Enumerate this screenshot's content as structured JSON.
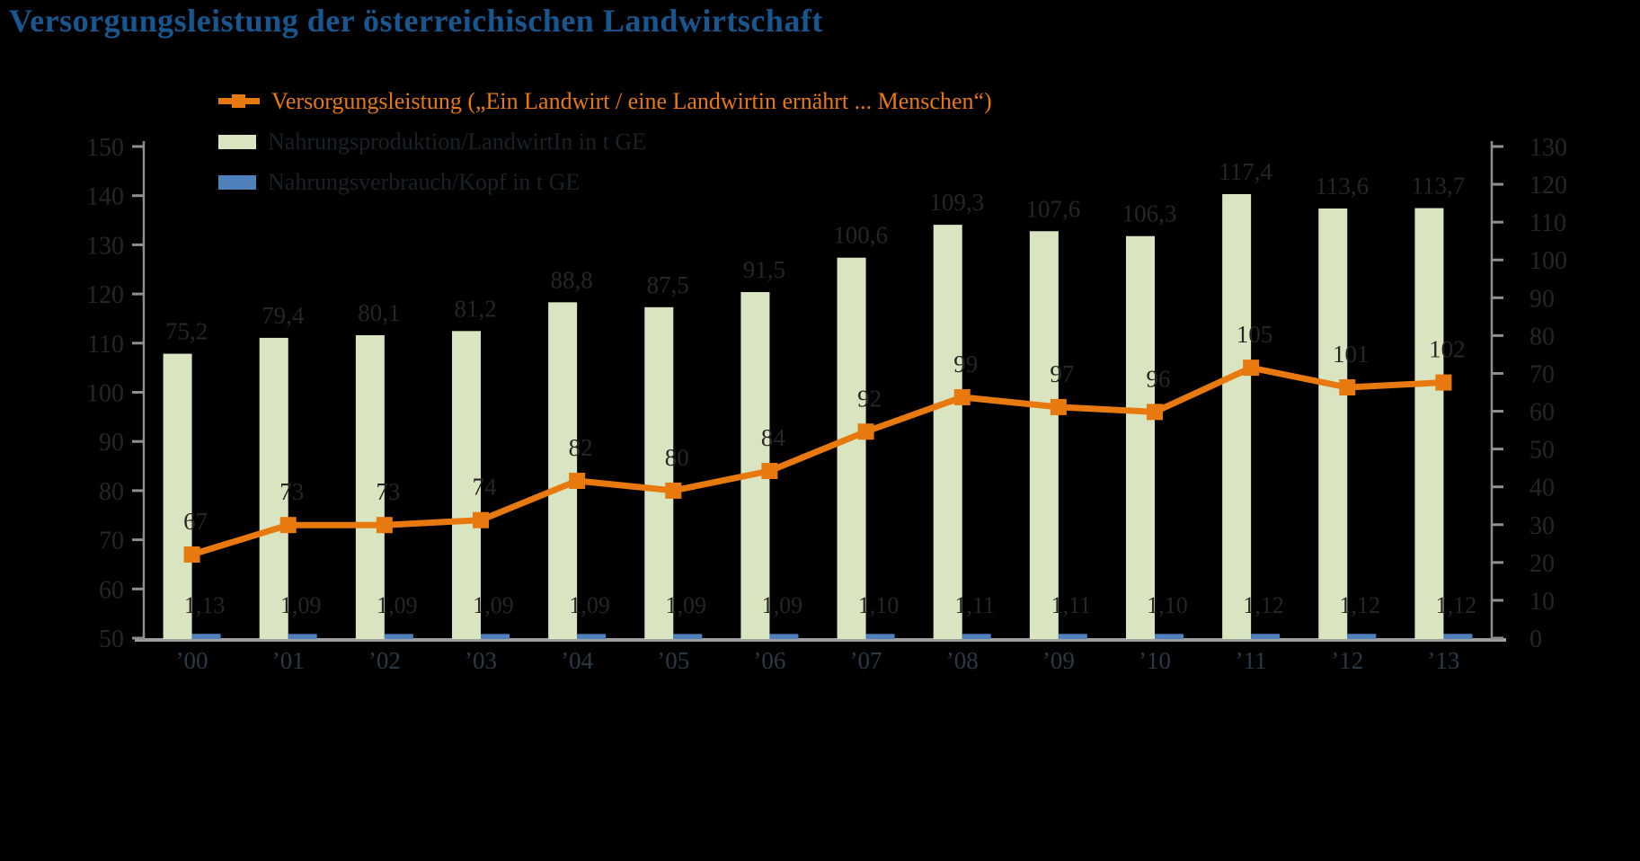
{
  "title": "Versorgungsleistung der österreichischen Landwirtschaft",
  "colors": {
    "background": "#000000",
    "title": "#17568F",
    "axis": "#8F8F8F",
    "axis_bottom": "#9E9E9E",
    "dark_label": "#262626",
    "x_label": "#2B3947",
    "orange": "#E8790F",
    "green": "#D9E5C1",
    "blue": "#4F81BD"
  },
  "legend": {
    "items": [
      {
        "marker": "line-with-square",
        "series": 0
      },
      {
        "marker": "swatch",
        "series": 1
      },
      {
        "marker": "swatch",
        "series": 2
      }
    ]
  },
  "chart_data": {
    "type": "bar+line",
    "title": "Versorgungsleistung der österreichischen Landwirtschaft",
    "categories": [
      "’00",
      "’01",
      "’02",
      "’03",
      "’04",
      "’05",
      "’06",
      "’07",
      "’08",
      "’09",
      "’10",
      "’11",
      "’12",
      "’13"
    ],
    "series": [
      {
        "name": "Versorgungsleistung  („Ein Landwirt / eine Landwirtin ernährt ... Menschen“)",
        "type": "line",
        "axis": "left",
        "color": "#E8790F",
        "values": [
          67,
          73,
          73,
          74,
          82,
          80,
          84,
          92,
          99,
          97,
          96,
          105,
          101,
          102
        ],
        "labels": [
          "67",
          "73",
          "73",
          "74",
          "82",
          "80",
          "84",
          "92",
          "99",
          "97",
          "96",
          "105",
          "101",
          "102"
        ]
      },
      {
        "name": "Nahrungsproduktion/LandwirtIn in t GE",
        "type": "bar",
        "axis": "right",
        "color": "#D9E5C1",
        "values": [
          75.2,
          79.4,
          80.1,
          81.2,
          88.8,
          87.5,
          91.5,
          100.6,
          109.3,
          107.6,
          106.3,
          117.4,
          113.6,
          113.7
        ],
        "labels": [
          "75,2",
          "79,4",
          "80,1",
          "81,2",
          "88,8",
          "87,5",
          "91,5",
          "100,6",
          "109,3",
          "107,6",
          "106,3",
          "117,4",
          "113,6",
          "113,7"
        ]
      },
      {
        "name": "Nahrungsverbrauch/Kopf in t GE",
        "type": "bar",
        "axis": "right",
        "color": "#4F81BD",
        "values": [
          1.13,
          1.09,
          1.09,
          1.09,
          1.09,
          1.09,
          1.09,
          1.1,
          1.11,
          1.11,
          1.1,
          1.12,
          1.12,
          1.12
        ],
        "labels": [
          "1,13",
          "1,09",
          "1,09",
          "1,09",
          "1,09",
          "1,09",
          "1,09",
          "1,10",
          "1,11",
          "1,11",
          "1,10",
          "1,12",
          "1,12",
          "1,12"
        ]
      }
    ],
    "axes": {
      "left": {
        "min": 50,
        "max": 150,
        "step": 10,
        "tick_labels": [
          "150",
          "140",
          "130",
          "120",
          "110",
          "100",
          "90",
          "80",
          "70",
          "60",
          "50"
        ]
      },
      "right": {
        "min": 0,
        "max": 130,
        "step": 10,
        "tick_labels": [
          "130",
          "120",
          "110",
          "100",
          "90",
          "80",
          "70",
          "60",
          "50",
          "40",
          "30",
          "20",
          "10",
          "0"
        ]
      }
    },
    "legend_position": "top-left",
    "grid": false
  }
}
